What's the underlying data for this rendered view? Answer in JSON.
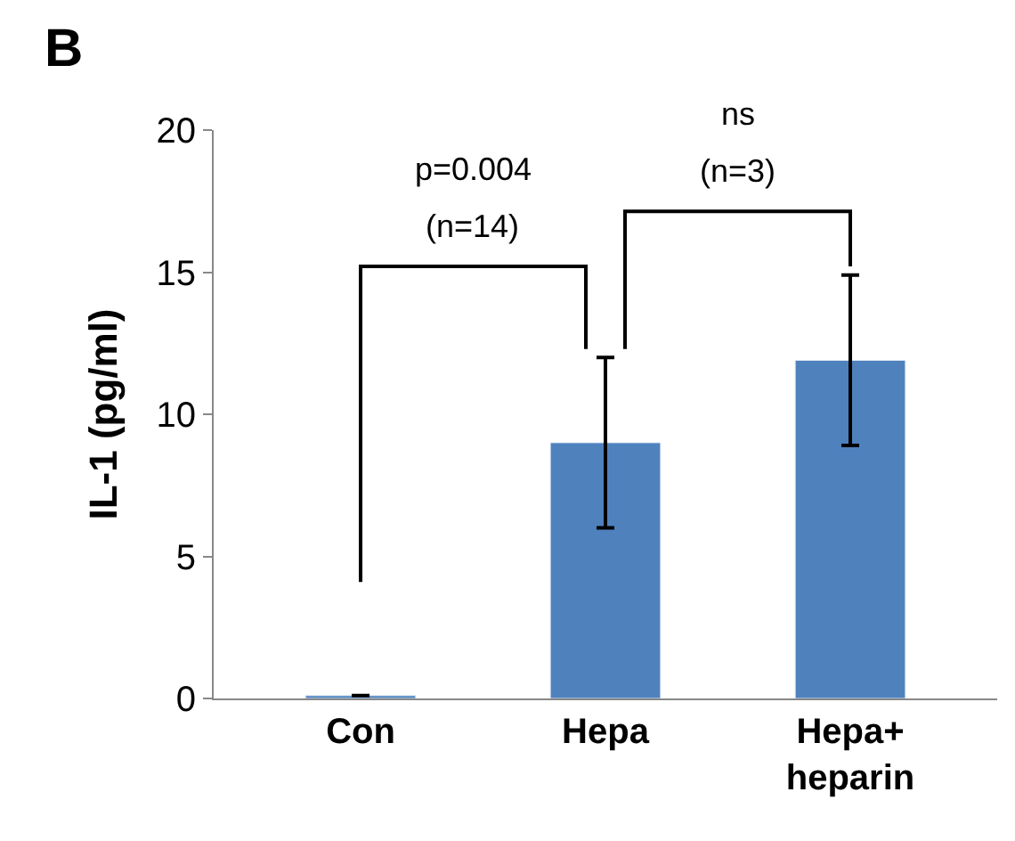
{
  "chart_data": {
    "type": "bar",
    "ylabel": "IL-1 (pg/ml)",
    "categories": [
      "Con",
      "Hepa",
      "Hepa+\nheparin"
    ],
    "values": [
      0.1,
      9,
      11.9
    ],
    "color": "#4f81bd",
    "errors": [
      null,
      3,
      3
    ],
    "ylim": [
      0,
      20
    ],
    "yticks": [
      0,
      5,
      10,
      15,
      20
    ],
    "legend": false,
    "annotations": [
      "B",
      "p=0.004",
      "(n=14)",
      "ns",
      "(n=3)"
    ]
  }
}
